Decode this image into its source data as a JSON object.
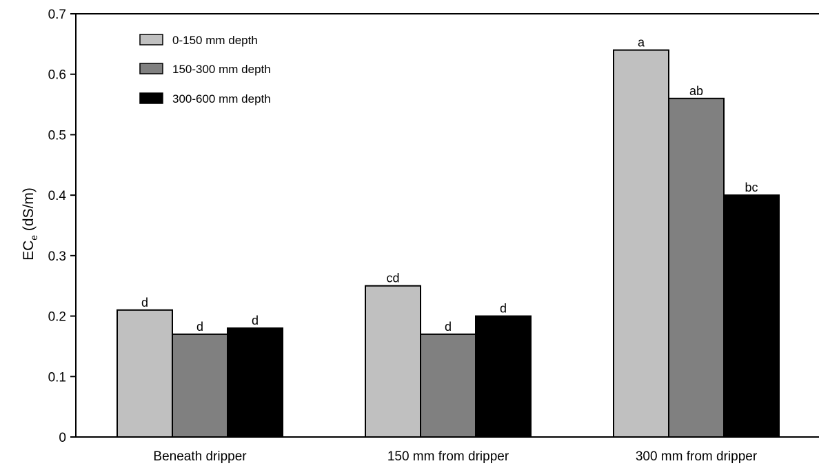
{
  "chart_data": {
    "type": "bar",
    "categories": [
      "Beneath dripper",
      "150 mm from dripper",
      "300 mm from dripper"
    ],
    "series": [
      {
        "name": "0-150 mm depth",
        "color": "#c0c0c0",
        "values": [
          0.21,
          0.25,
          0.64
        ],
        "labels": [
          "d",
          "cd",
          "a"
        ]
      },
      {
        "name": "150-300 mm depth",
        "color": "#808080",
        "values": [
          0.17,
          0.17,
          0.56
        ],
        "labels": [
          "d",
          "d",
          "ab"
        ]
      },
      {
        "name": "300-600 mm depth",
        "color": "#000000",
        "values": [
          0.18,
          0.2,
          0.4
        ],
        "labels": [
          "d",
          "d",
          "bc"
        ]
      }
    ],
    "ylabel": {
      "main": "EC",
      "sub": "e",
      "unit": " (dS/m)"
    },
    "ylim": [
      0,
      0.7
    ],
    "yticks": [
      0,
      0.1,
      0.2,
      0.3,
      0.4,
      0.5,
      0.6,
      0.7
    ],
    "ytick_labels": [
      "0",
      "0.1",
      "0.2",
      "0.3",
      "0.4",
      "0.5",
      "0.6",
      "0.7"
    ],
    "grid": false,
    "legend_position": "top-left"
  }
}
